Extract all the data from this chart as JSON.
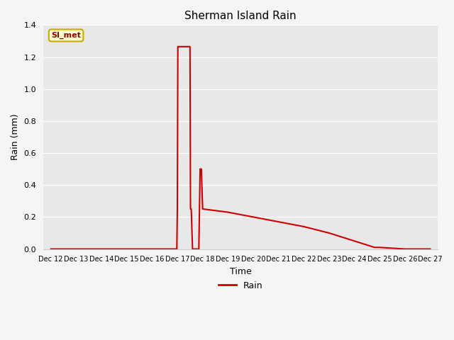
{
  "title": "Sherman Island Rain",
  "xlabel": "Time",
  "ylabel": "Rain (mm)",
  "legend_label": "Rain",
  "legend_sensor": "SI_met",
  "line_color": "#cc0000",
  "ylim": [
    0.0,
    1.4
  ],
  "background_color": "#f5f5f5",
  "plot_bg": "#e8e8e8",
  "x_tick_labels": [
    "Dec 12",
    "Dec 13",
    "Dec 14",
    "Dec 15",
    "Dec 16",
    "Dec 17",
    "Dec 18",
    "Dec 19",
    "Dec 20",
    "Dec 21",
    "Dec 22",
    "Dec 23",
    "Dec 24",
    "Dec 25",
    "Dec 26",
    "Dec 27"
  ],
  "x_detailed": [
    0.0,
    1.0,
    2.0,
    3.0,
    4.0,
    4.98,
    5.0,
    5.02,
    5.5,
    5.52,
    5.55,
    5.6,
    5.65,
    5.85,
    5.9,
    5.95,
    6.0,
    6.02,
    7.0,
    8.0,
    9.0,
    10.0,
    11.0,
    12.0,
    12.8,
    13.0,
    14.0,
    15.0
  ],
  "y_detailed": [
    0.0,
    0.0,
    0.0,
    0.0,
    0.0,
    0.0,
    0.25,
    1.265,
    1.265,
    0.25,
    0.25,
    0.0,
    0.0,
    0.0,
    0.5,
    0.5,
    0.25,
    0.25,
    0.23,
    0.2,
    0.17,
    0.14,
    0.1,
    0.05,
    0.01,
    0.01,
    0.0,
    0.0
  ],
  "yticks": [
    0.0,
    0.2,
    0.4,
    0.6,
    0.8,
    1.0,
    1.2,
    1.4
  ],
  "ytick_labels": [
    "0.0",
    "0.2",
    "0.4",
    "0.6",
    "0.8",
    "1.0",
    "1.2",
    "1.4"
  ]
}
